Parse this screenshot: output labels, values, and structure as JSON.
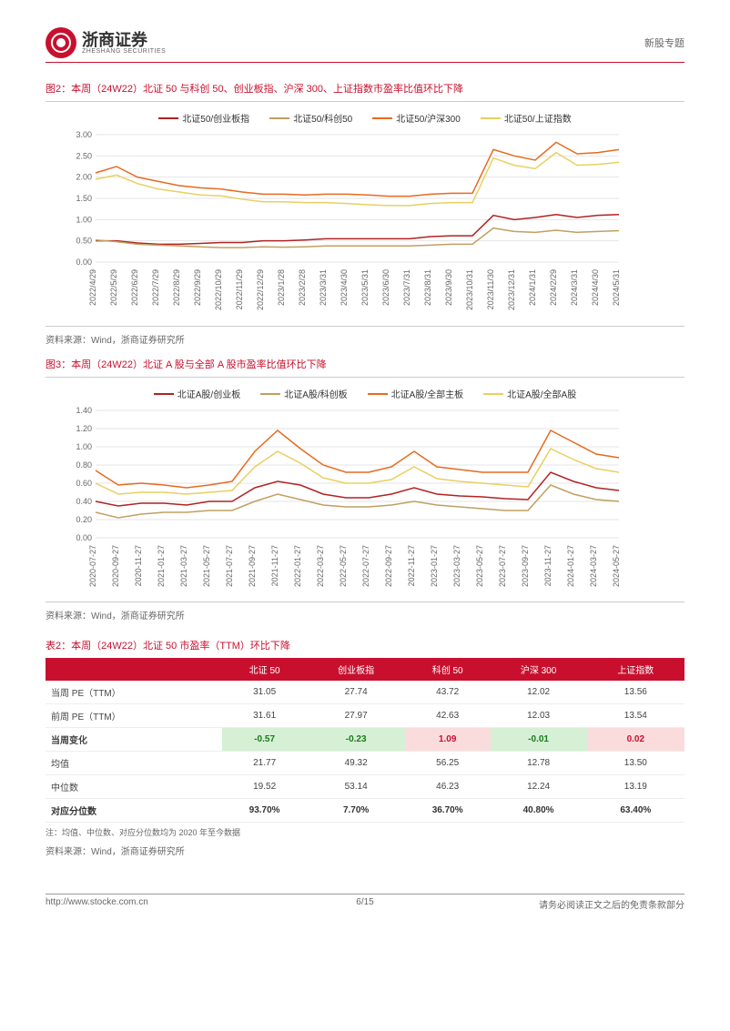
{
  "header": {
    "company_zh": "浙商证券",
    "company_en": "ZHESHANG SECURITIES",
    "topic": "新股专题"
  },
  "chart2": {
    "title": "图2：本周（24W22）北证 50 与科创 50、创业板指、沪深 300、上证指数市盈率比值环比下降",
    "legend": [
      {
        "label": "北证50/创业板指",
        "color": "#b22222"
      },
      {
        "label": "北证50/科创50",
        "color": "#c0a060"
      },
      {
        "label": "北证50/沪深300",
        "color": "#e56b1f"
      },
      {
        "label": "北证50/上证指数",
        "color": "#e8d060"
      }
    ],
    "ylim": [
      0,
      3.0
    ],
    "ytick_step": 0.5,
    "dates": [
      "2022/4/29",
      "2022/5/29",
      "2022/6/29",
      "2022/7/29",
      "2022/8/29",
      "2022/9/29",
      "2022/10/29",
      "2022/11/29",
      "2022/12/29",
      "2023/1/28",
      "2023/2/28",
      "2023/3/31",
      "2023/4/30",
      "2023/5/31",
      "2023/6/30",
      "2023/7/31",
      "2023/8/31",
      "2023/9/30",
      "2023/10/31",
      "2023/11/30",
      "2023/12/31",
      "2024/1/31",
      "2024/2/29",
      "2024/3/31",
      "2024/4/30",
      "2024/5/31"
    ],
    "series": {
      "cyb": [
        0.5,
        0.5,
        0.45,
        0.42,
        0.42,
        0.44,
        0.46,
        0.46,
        0.5,
        0.5,
        0.52,
        0.55,
        0.55,
        0.55,
        0.55,
        0.55,
        0.6,
        0.62,
        0.62,
        1.1,
        1.0,
        1.05,
        1.12,
        1.05,
        1.1,
        1.12
      ],
      "kc50": [
        0.52,
        0.48,
        0.42,
        0.4,
        0.38,
        0.36,
        0.34,
        0.34,
        0.36,
        0.35,
        0.36,
        0.38,
        0.38,
        0.38,
        0.38,
        0.38,
        0.4,
        0.42,
        0.42,
        0.8,
        0.72,
        0.7,
        0.75,
        0.7,
        0.72,
        0.74
      ],
      "hs300": [
        2.1,
        2.25,
        2.0,
        1.9,
        1.8,
        1.75,
        1.72,
        1.65,
        1.6,
        1.6,
        1.58,
        1.6,
        1.6,
        1.58,
        1.55,
        1.55,
        1.6,
        1.62,
        1.62,
        2.65,
        2.5,
        2.4,
        2.82,
        2.55,
        2.58,
        2.65
      ],
      "sz": [
        1.95,
        2.05,
        1.85,
        1.72,
        1.65,
        1.58,
        1.56,
        1.48,
        1.42,
        1.42,
        1.4,
        1.4,
        1.38,
        1.35,
        1.33,
        1.33,
        1.38,
        1.4,
        1.4,
        2.45,
        2.28,
        2.2,
        2.58,
        2.28,
        2.3,
        2.35
      ]
    },
    "grid_color": "#e5e5e5",
    "axis_color": "#888",
    "label_fontsize": 9
  },
  "chart3": {
    "title": "图3：本周（24W22）北证 A 股与全部 A 股市盈率比值环比下降",
    "legend": [
      {
        "label": "北证A股/创业板",
        "color": "#b22222"
      },
      {
        "label": "北证A股/科创板",
        "color": "#c0a060"
      },
      {
        "label": "北证A股/全部主板",
        "color": "#e56b1f"
      },
      {
        "label": "北证A股/全部A股",
        "color": "#e8d060"
      }
    ],
    "ylim": [
      0,
      1.4
    ],
    "ytick_step": 0.2,
    "dates": [
      "2020-07-27",
      "2020-09-27",
      "2020-11-27",
      "2021-01-27",
      "2021-03-27",
      "2021-05-27",
      "2021-07-27",
      "2021-09-27",
      "2021-11-27",
      "2022-01-27",
      "2022-03-27",
      "2022-05-27",
      "2022-07-27",
      "2022-09-27",
      "2022-11-27",
      "2023-01-27",
      "2023-03-27",
      "2023-05-27",
      "2023-07-27",
      "2023-09-27",
      "2023-11-27",
      "2024-01-27",
      "2024-03-27",
      "2024-05-27"
    ],
    "series": {
      "cyb": [
        0.4,
        0.35,
        0.38,
        0.38,
        0.36,
        0.4,
        0.4,
        0.55,
        0.62,
        0.58,
        0.48,
        0.44,
        0.44,
        0.48,
        0.55,
        0.48,
        0.46,
        0.45,
        0.43,
        0.42,
        0.72,
        0.62,
        0.55,
        0.52
      ],
      "kcb": [
        0.28,
        0.22,
        0.26,
        0.28,
        0.28,
        0.3,
        0.3,
        0.4,
        0.48,
        0.42,
        0.36,
        0.34,
        0.34,
        0.36,
        0.4,
        0.36,
        0.34,
        0.32,
        0.3,
        0.3,
        0.58,
        0.48,
        0.42,
        0.4
      ],
      "zb": [
        0.74,
        0.58,
        0.6,
        0.58,
        0.55,
        0.58,
        0.62,
        0.95,
        1.18,
        0.98,
        0.8,
        0.72,
        0.72,
        0.78,
        0.95,
        0.78,
        0.75,
        0.72,
        0.72,
        0.72,
        1.18,
        1.05,
        0.92,
        0.88
      ],
      "all": [
        0.6,
        0.48,
        0.5,
        0.5,
        0.48,
        0.5,
        0.52,
        0.78,
        0.95,
        0.82,
        0.66,
        0.6,
        0.6,
        0.64,
        0.78,
        0.65,
        0.62,
        0.6,
        0.58,
        0.56,
        0.98,
        0.86,
        0.76,
        0.72
      ]
    },
    "grid_color": "#e5e5e5",
    "axis_color": "#888",
    "label_fontsize": 9
  },
  "source": "资料来源：Wind，浙商证券研究所",
  "table2": {
    "title": "表2：本周（24W22）北证 50 市盈率（TTM）环比下降",
    "columns": [
      "",
      "北证 50",
      "创业板指",
      "科创 50",
      "沪深 300",
      "上证指数"
    ],
    "rows": [
      {
        "label": "当周 PE（TTM）",
        "v": [
          "31.05",
          "27.74",
          "43.72",
          "12.02",
          "13.56"
        ]
      },
      {
        "label": "前周 PE（TTM）",
        "v": [
          "31.61",
          "27.97",
          "42.63",
          "12.03",
          "13.54"
        ]
      },
      {
        "label": "当周变化",
        "v": [
          "-0.57",
          "-0.23",
          "1.09",
          "-0.01",
          "0.02"
        ],
        "cls": [
          "cell-green",
          "cell-green",
          "cell-red",
          "cell-green",
          "cell-red"
        ],
        "bold": true
      },
      {
        "label": "均值",
        "v": [
          "21.77",
          "49.32",
          "56.25",
          "12.78",
          "13.50"
        ]
      },
      {
        "label": "中位数",
        "v": [
          "19.52",
          "53.14",
          "46.23",
          "12.24",
          "13.19"
        ]
      },
      {
        "label": "对应分位数",
        "v": [
          "93.70%",
          "7.70%",
          "36.70%",
          "40.80%",
          "63.40%"
        ],
        "bold": true
      }
    ],
    "note": "注：均值、中位数、对应分位数均为 2020 年至今数据"
  },
  "footer": {
    "url": "http://www.stocke.com.cn",
    "pagenum": "6/15",
    "disclaimer": "请务必阅读正文之后的免责条款部分"
  }
}
